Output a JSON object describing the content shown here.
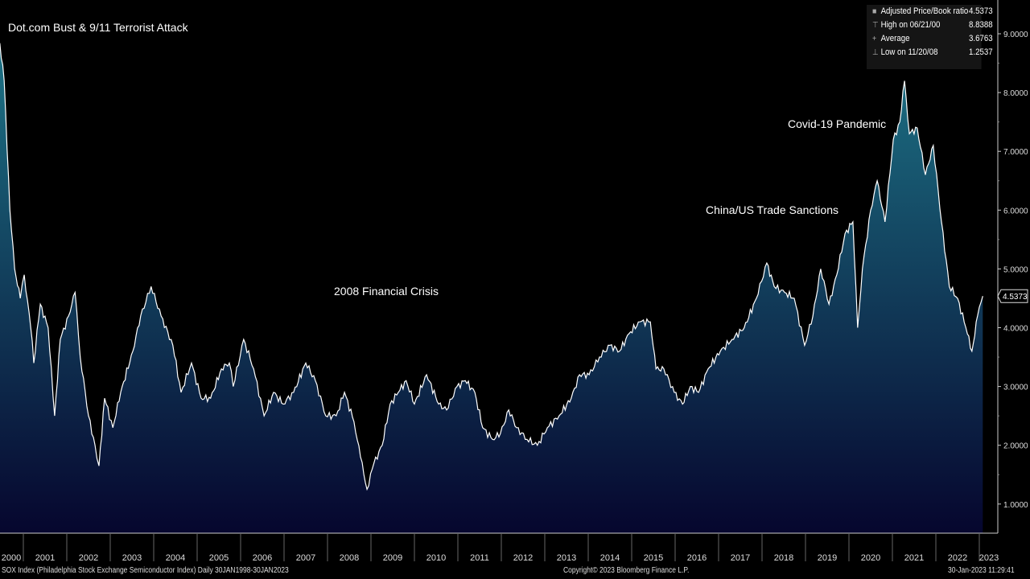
{
  "chart_data": {
    "type": "area",
    "title": "",
    "xlabel": "",
    "ylabel": "",
    "xlim": [
      2000.0,
      2023.3
    ],
    "ylim": [
      0.5,
      9.5
    ],
    "y_ticks": [
      "1.0000",
      "2.0000",
      "3.0000",
      "4.0000",
      "5.0000",
      "6.0000",
      "7.0000",
      "8.0000",
      "9.0000"
    ],
    "y_tick_values": [
      1,
      2,
      3,
      4,
      5,
      6,
      7,
      8,
      9
    ],
    "x_ticks": [
      "2000",
      "2001",
      "2002",
      "2003",
      "2004",
      "2005",
      "2006",
      "2007",
      "2008",
      "2009",
      "2010",
      "2011",
      "2012",
      "2013",
      "2014",
      "2015",
      "2016",
      "2017",
      "2018",
      "2019",
      "2020",
      "2021",
      "2022",
      "2023"
    ],
    "series": [
      {
        "name": "Adjusted Price/Book ratio",
        "color": "#ffffff",
        "x": [
          2000.46,
          2000.56,
          2000.69,
          2000.8,
          2000.93,
          2001.02,
          2001.17,
          2001.24,
          2001.39,
          2001.57,
          2001.72,
          2001.85,
          2002.04,
          2002.19,
          2002.31,
          2002.5,
          2002.65,
          2002.74,
          2002.87,
          2003.06,
          2003.24,
          2003.52,
          2003.7,
          2003.94,
          2004.17,
          2004.44,
          2004.63,
          2004.87,
          2005.09,
          2005.31,
          2005.56,
          2005.74,
          2005.83,
          2006.07,
          2006.3,
          2006.54,
          2006.76,
          2006.98,
          2007.22,
          2007.5,
          2007.72,
          2007.96,
          2008.2,
          2008.39,
          2008.61,
          2008.76,
          2008.91,
          2009.07,
          2009.26,
          2009.44,
          2009.63,
          2009.81,
          2010.0,
          2010.28,
          2010.56,
          2010.74,
          2010.98,
          2011.17,
          2011.39,
          2011.57,
          2011.8,
          2011.98,
          2012.17,
          2012.35,
          2012.59,
          2012.83,
          2013.06,
          2013.33,
          2013.61,
          2013.8,
          2014.02,
          2014.26,
          2014.5,
          2014.72,
          2014.94,
          2015.19,
          2015.43,
          2015.56,
          2015.74,
          2015.98,
          2016.17,
          2016.35,
          2016.54,
          2016.76,
          2017.04,
          2017.31,
          2017.59,
          2017.87,
          2018.11,
          2018.28,
          2018.52,
          2018.74,
          2018.98,
          2019.17,
          2019.35,
          2019.54,
          2019.72,
          2019.91,
          2020.09,
          2020.2,
          2020.31,
          2020.5,
          2020.65,
          2020.83,
          2021.02,
          2021.17,
          2021.28,
          2021.39,
          2021.57,
          2021.76,
          2021.94,
          2022.13,
          2022.31,
          2022.5,
          2022.69,
          2022.83,
          2022.96,
          2023.08
        ],
        "y": [
          8.84,
          8.2,
          6.0,
          5.0,
          4.5,
          4.9,
          4.0,
          3.4,
          4.4,
          4.0,
          2.5,
          3.8,
          4.2,
          4.6,
          3.5,
          2.5,
          2.0,
          1.65,
          2.8,
          2.3,
          2.9,
          3.6,
          4.2,
          4.7,
          4.2,
          3.7,
          2.9,
          3.4,
          2.8,
          2.8,
          3.3,
          3.4,
          3.0,
          3.8,
          3.3,
          2.5,
          2.9,
          2.7,
          2.9,
          3.4,
          3.1,
          2.5,
          2.5,
          2.9,
          2.4,
          1.8,
          1.25,
          1.7,
          2.0,
          2.7,
          2.9,
          3.1,
          2.7,
          3.2,
          2.7,
          2.6,
          3.0,
          3.1,
          2.9,
          2.3,
          2.1,
          2.2,
          2.6,
          2.3,
          2.1,
          2.0,
          2.3,
          2.5,
          2.8,
          3.2,
          3.2,
          3.5,
          3.7,
          3.6,
          3.9,
          4.1,
          4.1,
          3.3,
          3.3,
          2.9,
          2.7,
          3.0,
          2.9,
          3.3,
          3.6,
          3.8,
          4.0,
          4.5,
          5.1,
          4.7,
          4.6,
          4.5,
          3.7,
          4.2,
          5.0,
          4.4,
          4.9,
          5.6,
          5.8,
          4.0,
          5.0,
          6.0,
          6.5,
          5.8,
          7.2,
          7.5,
          8.2,
          7.3,
          7.4,
          6.6,
          7.1,
          5.8,
          4.7,
          4.5,
          4.0,
          3.6,
          4.2,
          4.5373
        ]
      }
    ],
    "last_value_label": "4.5373",
    "legend": {
      "placement": "top-right",
      "rows": [
        {
          "label": "Adjusted Price/Book ratio",
          "value": "4.5373"
        },
        {
          "label": "High on 06/21/00",
          "value": "8.8388"
        },
        {
          "label": "Average",
          "value": "3.6763"
        },
        {
          "label": "Low on 11/20/08",
          "value": "1.2537"
        }
      ]
    },
    "annotations": [
      "Dot.com Bust & 9/11 Terrorist Attack",
      "2008 Financial Crisis",
      "China/US Trade Sanctions",
      "Covid-19 Pandemic"
    ]
  },
  "footer": {
    "left": "SOX Index (Philadelphia Stock Exchange Semiconductor Index)  Daily 30JAN1998-30JAN2023",
    "center": "Copyright© 2023 Bloomberg Finance L.P.",
    "right": "30-Jan-2023 11:29:41"
  },
  "colors": {
    "fill_top": "#1d7386",
    "fill_bottom": "#06062e",
    "line": "#ffffff"
  }
}
